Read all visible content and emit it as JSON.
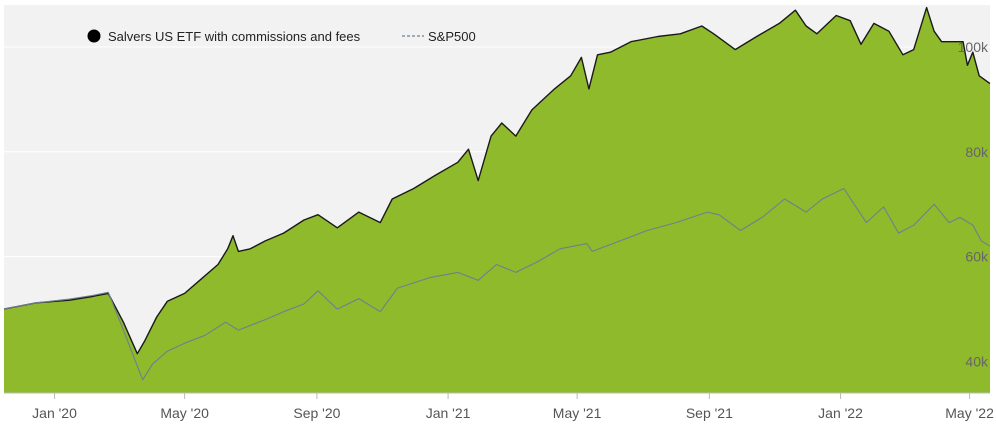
{
  "chart_data": {
    "type": "area",
    "grid": true,
    "legend_position": "top-left",
    "colors": {
      "plot_bg": "#f2f2f2",
      "area_fill": "#8fba2c",
      "area_line": "#1a1a1a",
      "sp_line": "#6f7f8f",
      "grid": "#ffffff"
    },
    "legend": [
      {
        "label": "Salvers US ETF with commissions and fees",
        "marker": "filled-circle"
      },
      {
        "label": "S&P500",
        "marker": "dashed-line"
      }
    ],
    "ylim": [
      34000,
      108000
    ],
    "xlim": [
      "2019-11-15",
      "2022-05-20"
    ],
    "yticks": [
      {
        "label": "40k",
        "value": 40000
      },
      {
        "label": "60k",
        "value": 60000
      },
      {
        "label": "80k",
        "value": 80000
      },
      {
        "label": "100k",
        "value": 100000
      }
    ],
    "xticks": [
      {
        "label": "Jan '20",
        "date": "2020-01-01"
      },
      {
        "label": "May '20",
        "date": "2020-05-01"
      },
      {
        "label": "Sep '20",
        "date": "2020-09-01"
      },
      {
        "label": "Jan '21",
        "date": "2021-01-01"
      },
      {
        "label": "May '21",
        "date": "2021-05-01"
      },
      {
        "label": "Sep '21",
        "date": "2021-09-01"
      },
      {
        "label": "Jan '22",
        "date": "2022-01-01"
      },
      {
        "label": "May '22",
        "date": "2022-05-01"
      }
    ],
    "series": [
      {
        "name": "Salvers US ETF with commissions and fees",
        "style": "area",
        "points": [
          [
            "2019-11-15",
            50000
          ],
          [
            "2019-12-15",
            51200
          ],
          [
            "2020-01-15",
            51700
          ],
          [
            "2020-02-05",
            52400
          ],
          [
            "2020-02-20",
            53000
          ],
          [
            "2020-03-05",
            47500
          ],
          [
            "2020-03-18",
            41500
          ],
          [
            "2020-03-25",
            44000
          ],
          [
            "2020-04-05",
            48500
          ],
          [
            "2020-04-15",
            51500
          ],
          [
            "2020-05-01",
            53000
          ],
          [
            "2020-05-15",
            55500
          ],
          [
            "2020-06-01",
            58500
          ],
          [
            "2020-06-10",
            61500
          ],
          [
            "2020-06-15",
            64000
          ],
          [
            "2020-06-20",
            61000
          ],
          [
            "2020-07-01",
            61500
          ],
          [
            "2020-07-15",
            63000
          ],
          [
            "2020-08-01",
            64500
          ],
          [
            "2020-08-20",
            67000
          ],
          [
            "2020-09-02",
            68000
          ],
          [
            "2020-09-20",
            65500
          ],
          [
            "2020-10-10",
            68500
          ],
          [
            "2020-10-30",
            66500
          ],
          [
            "2020-11-10",
            71000
          ],
          [
            "2020-11-30",
            73000
          ],
          [
            "2020-12-20",
            75500
          ],
          [
            "2021-01-10",
            78000
          ],
          [
            "2021-01-20",
            80500
          ],
          [
            "2021-01-29",
            74500
          ],
          [
            "2021-02-10",
            83000
          ],
          [
            "2021-02-20",
            85500
          ],
          [
            "2021-03-05",
            83000
          ],
          [
            "2021-03-20",
            88000
          ],
          [
            "2021-04-10",
            92000
          ],
          [
            "2021-04-25",
            94500
          ],
          [
            "2021-05-05",
            98000
          ],
          [
            "2021-05-12",
            92000
          ],
          [
            "2021-05-20",
            98500
          ],
          [
            "2021-06-01",
            99000
          ],
          [
            "2021-06-20",
            101000
          ],
          [
            "2021-07-15",
            102000
          ],
          [
            "2021-08-05",
            102500
          ],
          [
            "2021-08-25",
            104000
          ],
          [
            "2021-09-05",
            102500
          ],
          [
            "2021-09-25",
            99500
          ],
          [
            "2021-10-15",
            102000
          ],
          [
            "2021-11-05",
            104500
          ],
          [
            "2021-11-20",
            107000
          ],
          [
            "2021-11-30",
            104000
          ],
          [
            "2021-12-10",
            102500
          ],
          [
            "2021-12-28",
            106000
          ],
          [
            "2022-01-10",
            105000
          ],
          [
            "2022-01-20",
            100500
          ],
          [
            "2022-02-01",
            104500
          ],
          [
            "2022-02-15",
            103000
          ],
          [
            "2022-02-28",
            98500
          ],
          [
            "2022-03-10",
            99500
          ],
          [
            "2022-03-22",
            107500
          ],
          [
            "2022-03-29",
            103000
          ],
          [
            "2022-04-05",
            101000
          ],
          [
            "2022-04-25",
            101000
          ],
          [
            "2022-04-29",
            96500
          ],
          [
            "2022-05-04",
            99000
          ],
          [
            "2022-05-10",
            94500
          ],
          [
            "2022-05-20",
            93000
          ]
        ]
      },
      {
        "name": "S&P500",
        "style": "line",
        "points": [
          [
            "2019-11-15",
            50000
          ],
          [
            "2019-12-15",
            51200
          ],
          [
            "2020-01-15",
            51900
          ],
          [
            "2020-02-05",
            52600
          ],
          [
            "2020-02-20",
            53200
          ],
          [
            "2020-03-05",
            46000
          ],
          [
            "2020-03-23",
            36500
          ],
          [
            "2020-04-01",
            39500
          ],
          [
            "2020-04-15",
            42000
          ],
          [
            "2020-05-01",
            43500
          ],
          [
            "2020-05-20",
            45000
          ],
          [
            "2020-06-08",
            47500
          ],
          [
            "2020-06-20",
            46000
          ],
          [
            "2020-07-15",
            48000
          ],
          [
            "2020-08-01",
            49500
          ],
          [
            "2020-08-20",
            51000
          ],
          [
            "2020-09-02",
            53500
          ],
          [
            "2020-09-20",
            50000
          ],
          [
            "2020-10-10",
            52000
          ],
          [
            "2020-10-30",
            49500
          ],
          [
            "2020-11-15",
            54000
          ],
          [
            "2020-12-15",
            56000
          ],
          [
            "2021-01-10",
            57000
          ],
          [
            "2021-01-29",
            55500
          ],
          [
            "2021-02-15",
            58500
          ],
          [
            "2021-03-05",
            57000
          ],
          [
            "2021-03-25",
            59000
          ],
          [
            "2021-04-15",
            61500
          ],
          [
            "2021-05-10",
            62500
          ],
          [
            "2021-05-15",
            61000
          ],
          [
            "2021-06-10",
            63000
          ],
          [
            "2021-07-05",
            65000
          ],
          [
            "2021-08-01",
            66500
          ],
          [
            "2021-08-30",
            68500
          ],
          [
            "2021-09-10",
            68000
          ],
          [
            "2021-09-30",
            65000
          ],
          [
            "2021-10-20",
            67500
          ],
          [
            "2021-11-10",
            71000
          ],
          [
            "2021-11-30",
            68500
          ],
          [
            "2021-12-15",
            71000
          ],
          [
            "2022-01-04",
            73000
          ],
          [
            "2022-01-25",
            66500
          ],
          [
            "2022-02-10",
            69500
          ],
          [
            "2022-02-24",
            64500
          ],
          [
            "2022-03-10",
            66000
          ],
          [
            "2022-03-29",
            70000
          ],
          [
            "2022-04-12",
            66500
          ],
          [
            "2022-04-22",
            67500
          ],
          [
            "2022-05-04",
            66000
          ],
          [
            "2022-05-12",
            63000
          ],
          [
            "2022-05-20",
            62000
          ]
        ]
      }
    ]
  }
}
